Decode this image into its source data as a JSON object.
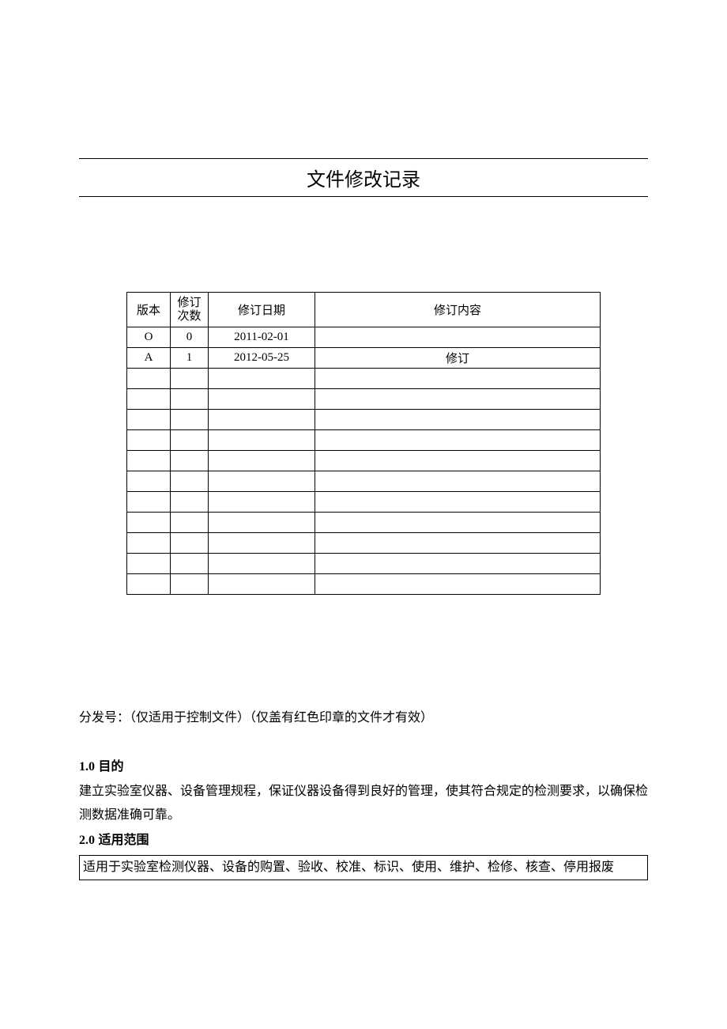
{
  "title": "文件修改记录",
  "table": {
    "headers": {
      "version": "版本",
      "revnum": "修订\n次数",
      "date": "修订日期",
      "content": "修订内容"
    },
    "rows": [
      {
        "version": "O",
        "revnum": "0",
        "date": "2011-02-01",
        "content": ""
      },
      {
        "version": "A",
        "revnum": "1",
        "date": "2012-05-25",
        "content": "修订"
      },
      {
        "version": "",
        "revnum": "",
        "date": "",
        "content": ""
      },
      {
        "version": "",
        "revnum": "",
        "date": "",
        "content": ""
      },
      {
        "version": "",
        "revnum": "",
        "date": "",
        "content": ""
      },
      {
        "version": "",
        "revnum": "",
        "date": "",
        "content": ""
      },
      {
        "version": "",
        "revnum": "",
        "date": "",
        "content": ""
      },
      {
        "version": "",
        "revnum": "",
        "date": "",
        "content": ""
      },
      {
        "version": "",
        "revnum": "",
        "date": "",
        "content": ""
      },
      {
        "version": "",
        "revnum": "",
        "date": "",
        "content": ""
      },
      {
        "version": "",
        "revnum": "",
        "date": "",
        "content": ""
      },
      {
        "version": "",
        "revnum": "",
        "date": "",
        "content": ""
      },
      {
        "version": "",
        "revnum": "",
        "date": "",
        "content": ""
      }
    ],
    "col_widths": {
      "version": 55,
      "revnum": 48,
      "date": 135
    },
    "border_color": "#000000",
    "font_size": 15
  },
  "distribution": "分发号：（仅适用于控制文件）（仅盖有红色印章的文件才有效）",
  "sections": {
    "purpose": {
      "num": "1.0",
      "heading": " 目的",
      "text": "建立实验室仪器、设备管理规程，保证仪器设备得到良好的管理，使其符合规定的检测要求，以确保检测数据准确可靠。"
    },
    "scope": {
      "num": "2.0",
      "heading": " 适用范围",
      "text": "适用于实验室检测仪器、设备的购置、验收、校准、标识、使用、维护、检修、核查、停用报废"
    }
  },
  "colors": {
    "text": "#000000",
    "background": "#ffffff",
    "border": "#000000"
  },
  "typography": {
    "title_fontsize": 24,
    "body_fontsize": 16,
    "table_fontsize": 15
  }
}
